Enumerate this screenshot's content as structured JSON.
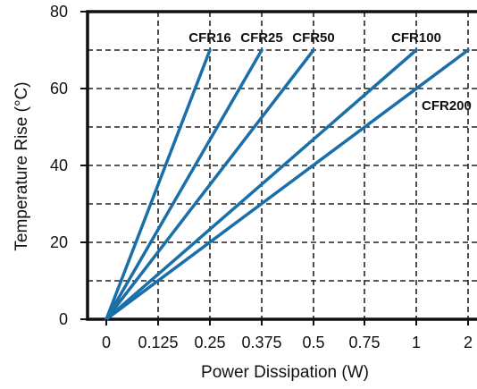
{
  "chart_data": {
    "type": "line",
    "xlabel": "Power Dissipation (W)",
    "ylabel": "Temperature Rise (°C)",
    "x_categories": [
      "0",
      "0.125",
      "0.25",
      "0.375",
      "0.5",
      "0.75",
      "1",
      "2"
    ],
    "yticks": [
      "0",
      "20",
      "40",
      "60",
      "80"
    ],
    "ylim": [
      0,
      80
    ],
    "grid": true,
    "line_color": "#1a6fa8",
    "series": [
      {
        "name": "CFR16",
        "points": [
          {
            "x": "0",
            "y": 0
          },
          {
            "x": "0.25",
            "y": 70
          }
        ]
      },
      {
        "name": "CFR25",
        "points": [
          {
            "x": "0",
            "y": 0
          },
          {
            "x": "0.375",
            "y": 70
          }
        ]
      },
      {
        "name": "CFR50",
        "points": [
          {
            "x": "0",
            "y": 0
          },
          {
            "x": "0.5",
            "y": 70
          }
        ]
      },
      {
        "name": "CFR100",
        "points": [
          {
            "x": "0",
            "y": 0
          },
          {
            "x": "1",
            "y": 70
          }
        ]
      },
      {
        "name": "CFR200",
        "points": [
          {
            "x": "0",
            "y": 0
          },
          {
            "x": "2",
            "y": 70
          }
        ]
      }
    ]
  }
}
